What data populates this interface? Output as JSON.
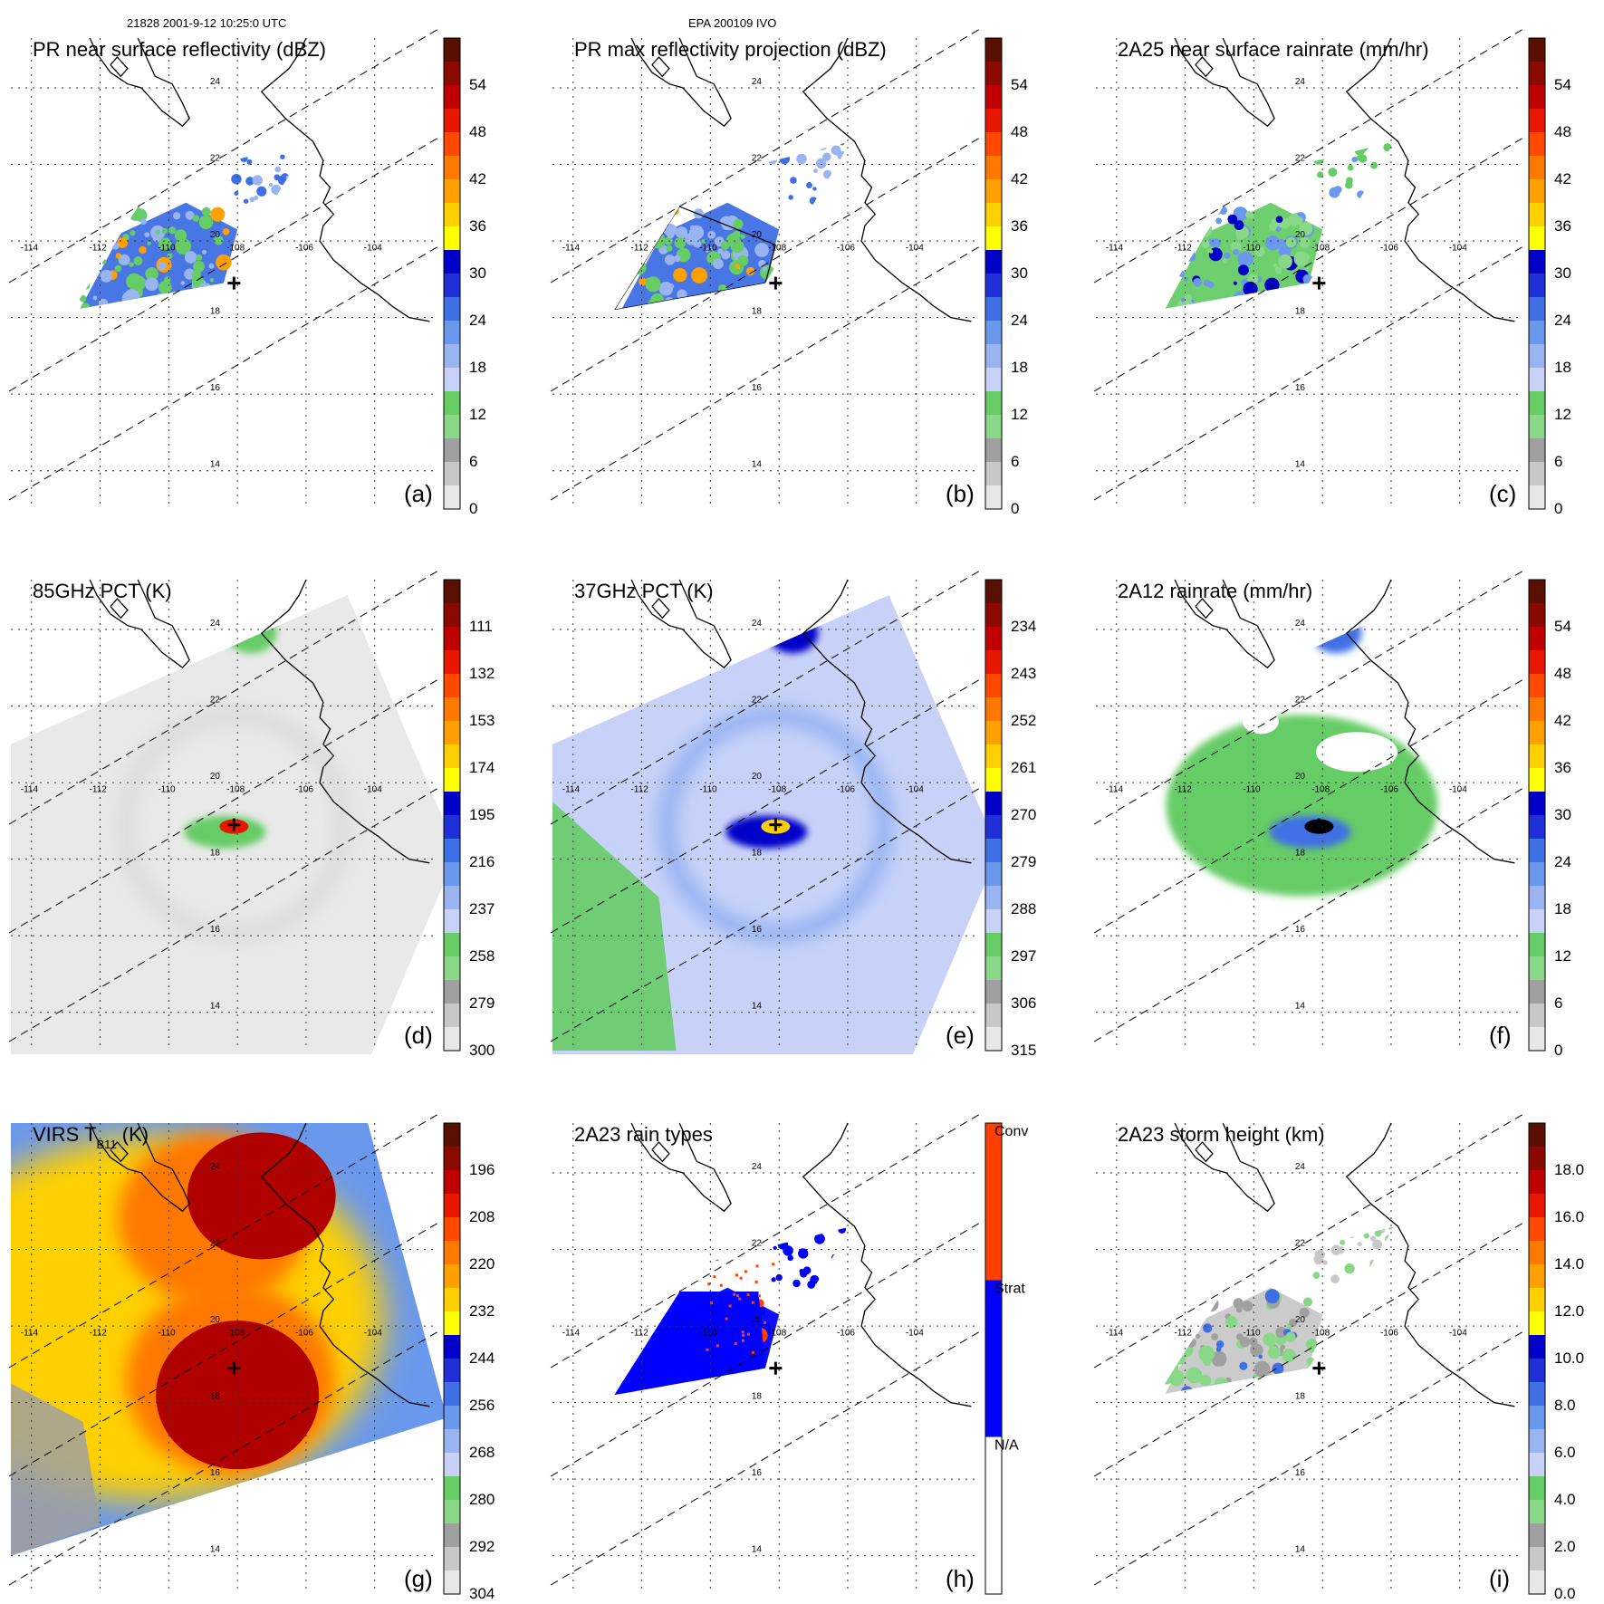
{
  "header": {
    "left": "21828 2001-9-12 10:25:0 UTC",
    "center": "EPA 200109 IVO"
  },
  "map": {
    "lon_labels": [
      "-114",
      "-112",
      "-110",
      "-108",
      "-106",
      "-104"
    ],
    "lat_labels": [
      "24",
      "22",
      "20",
      "18",
      "16",
      "14"
    ],
    "lon_values": [
      -114,
      -112,
      -110,
      -108,
      -106,
      -104
    ],
    "lat_values": [
      24,
      22,
      20,
      18,
      16,
      14
    ],
    "storm_center": {
      "lon": -108.1,
      "lat": 18.9
    }
  },
  "panels": [
    {
      "id": "a",
      "title": "PR near surface reflectivity (dBZ)",
      "letter": "(a)",
      "ticks": [
        "54",
        "48",
        "42",
        "36",
        "30",
        "24",
        "18",
        "12",
        "6",
        "0"
      ],
      "kind": "swath",
      "field": "refl"
    },
    {
      "id": "b",
      "title": "PR max reflectivity projection (dBZ)",
      "letter": "(b)",
      "ticks": [
        "54",
        "48",
        "42",
        "36",
        "30",
        "24",
        "18",
        "12",
        "6",
        "0"
      ],
      "kind": "swath",
      "field": "maxrefl"
    },
    {
      "id": "c",
      "title": "2A25 near surface rainrate (mm/hr)",
      "letter": "(c)",
      "ticks": [
        "54",
        "48",
        "42",
        "36",
        "30",
        "24",
        "18",
        "12",
        "6",
        "0"
      ],
      "kind": "swath",
      "field": "rain"
    },
    {
      "id": "d",
      "title": "85GHz PCT (K)",
      "letter": "(d)",
      "ticks": [
        "111",
        "132",
        "153",
        "174",
        "195",
        "216",
        "237",
        "258",
        "279",
        "300"
      ],
      "kind": "tmi",
      "field": "pct85"
    },
    {
      "id": "e",
      "title": "37GHz PCT (K)",
      "letter": "(e)",
      "ticks": [
        "234",
        "243",
        "252",
        "261",
        "270",
        "279",
        "288",
        "297",
        "306",
        "315"
      ],
      "kind": "tmi",
      "field": "pct37"
    },
    {
      "id": "f",
      "title": "2A12 rainrate (mm/hr)",
      "letter": "(f)",
      "ticks": [
        "54",
        "48",
        "42",
        "36",
        "30",
        "24",
        "18",
        "12",
        "6",
        "0"
      ],
      "kind": "tmi",
      "field": "rain12"
    },
    {
      "id": "g",
      "title": "VIRS T",
      "title_sub": "B11",
      "title_tail": " (K)",
      "letter": "(g)",
      "ticks": [
        "196",
        "208",
        "220",
        "232",
        "244",
        "256",
        "268",
        "280",
        "292",
        "304"
      ],
      "kind": "virs",
      "field": "virs"
    },
    {
      "id": "h",
      "title": "2A23 rain types",
      "letter": "(h)",
      "ticks": [
        "Conv",
        "Strat",
        "N/A"
      ],
      "kind": "swath",
      "field": "types"
    },
    {
      "id": "i",
      "title": "2A23 storm height (km)",
      "letter": "(i)",
      "ticks": [
        "18.0",
        "16.0",
        "14.0",
        "12.0",
        "10.0",
        "8.0",
        "6.0",
        "4.0",
        "2.0",
        "0.0"
      ],
      "kind": "swath",
      "field": "height"
    }
  ],
  "palette": {
    "levels": [
      "#ffffff",
      "#e8e8e8",
      "#c8c8c8",
      "#a0a0a0",
      "#88d888",
      "#66cc66",
      "#c8d2f8",
      "#9ab4f2",
      "#6a98ec",
      "#3f6fe4",
      "#1f30d8",
      "#0000c8",
      "#ffff00",
      "#ffd000",
      "#ffa000",
      "#ff7800",
      "#ff4800",
      "#e81800",
      "#c00000",
      "#8a0a00",
      "#5a1000"
    ],
    "types": [
      "#ffffff",
      "#0000ff",
      "#ff4000"
    ],
    "coast": "#000000",
    "track": "#000000"
  }
}
